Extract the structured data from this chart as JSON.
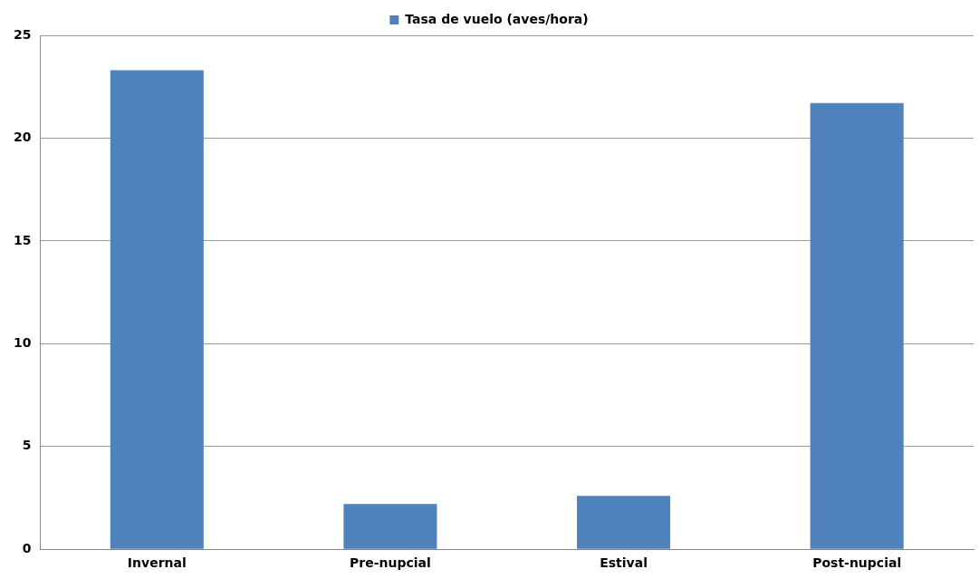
{
  "chart_data": {
    "type": "bar",
    "categories": [
      "Invernal",
      "Pre-nupcial",
      "Estival",
      "Post-nupcial"
    ],
    "series": [
      {
        "name": "Tasa de vuelo (aves/hora)",
        "color": "#4f81bd",
        "values": [
          23.3,
          2.2,
          2.6,
          21.7
        ]
      }
    ],
    "ylim": [
      0,
      25
    ],
    "yticks": [
      0,
      5,
      10,
      15,
      20,
      25
    ],
    "grid": "y",
    "legend": "top"
  }
}
